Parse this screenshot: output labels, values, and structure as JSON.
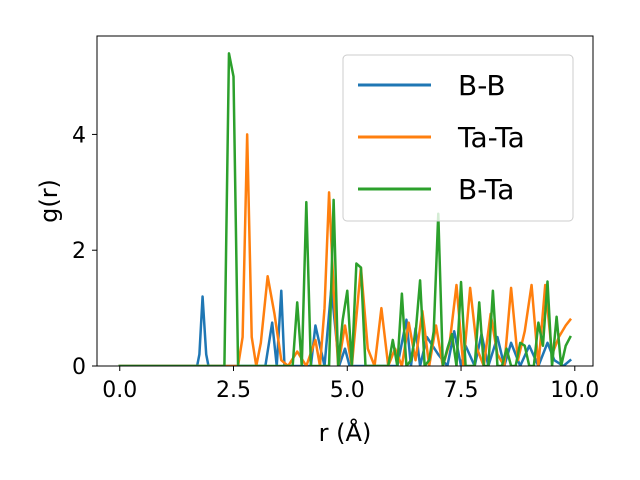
{
  "chart_data": {
    "type": "line",
    "title": "",
    "xlabel": "r (Å)",
    "ylabel": "g(r)",
    "xlim": [
      -0.5,
      10.4
    ],
    "ylim": [
      0,
      5.7
    ],
    "xticks": [
      0.0,
      2.5,
      5.0,
      7.5,
      10.0
    ],
    "xtick_labels": [
      "0.0",
      "2.5",
      "5.0",
      "7.5",
      "10.0"
    ],
    "yticks": [
      0,
      2,
      4
    ],
    "ytick_labels": [
      "0",
      "2",
      "4"
    ],
    "grid": false,
    "legend_position": "top-right",
    "series": [
      {
        "name": "B-B",
        "color": "#1f77b4",
        "x": [
          0.0,
          1.7,
          1.75,
          1.82,
          1.9,
          1.95,
          3.2,
          3.35,
          3.45,
          3.55,
          3.62,
          3.7,
          4.2,
          4.3,
          4.5,
          4.65,
          4.82,
          4.95,
          5.05,
          5.15,
          6.1,
          6.3,
          6.4,
          6.5,
          6.6,
          6.75,
          7.0,
          7.2,
          7.35,
          7.5,
          7.6,
          7.8,
          7.95,
          8.1,
          8.3,
          8.45,
          8.6,
          8.8,
          9.0,
          9.2,
          9.4,
          9.55,
          9.75,
          9.9
        ],
        "y": [
          0.0,
          0.0,
          0.2,
          1.2,
          0.2,
          0.0,
          0.0,
          0.75,
          0.0,
          1.3,
          0.0,
          0.0,
          0.0,
          0.7,
          0.0,
          1.35,
          0.0,
          0.3,
          0.0,
          0.0,
          0.0,
          0.8,
          0.0,
          0.65,
          0.0,
          0.5,
          0.2,
          0.0,
          0.6,
          0.0,
          0.35,
          0.0,
          0.55,
          0.0,
          0.5,
          0.0,
          0.4,
          0.0,
          0.35,
          0.0,
          0.4,
          0.1,
          0.0,
          0.1
        ]
      },
      {
        "name": "Ta-Ta",
        "color": "#ff7f0e",
        "x": [
          0.0,
          2.6,
          2.7,
          2.8,
          2.9,
          3.0,
          3.1,
          3.25,
          3.4,
          3.55,
          3.7,
          3.9,
          4.1,
          4.3,
          4.4,
          4.5,
          4.6,
          4.7,
          4.8,
          4.95,
          5.1,
          5.3,
          5.45,
          5.6,
          5.75,
          5.9,
          6.05,
          6.2,
          6.35,
          6.5,
          6.65,
          6.8,
          6.95,
          7.1,
          7.25,
          7.4,
          7.55,
          7.7,
          7.85,
          8.0,
          8.15,
          8.3,
          8.45,
          8.6,
          8.75,
          8.9,
          9.05,
          9.2,
          9.35,
          9.5,
          9.65,
          9.8,
          9.9
        ],
        "y": [
          0.0,
          0.0,
          0.5,
          4.0,
          0.5,
          0.0,
          0.4,
          1.55,
          0.9,
          0.1,
          0.0,
          0.25,
          0.0,
          0.45,
          0.0,
          1.0,
          3.0,
          1.3,
          0.0,
          0.7,
          0.0,
          1.7,
          0.3,
          0.0,
          1.0,
          0.0,
          0.3,
          0.0,
          0.75,
          0.1,
          0.95,
          0.0,
          0.7,
          0.0,
          0.4,
          1.4,
          0.0,
          1.35,
          0.3,
          0.0,
          0.9,
          0.2,
          0.0,
          1.35,
          0.1,
          0.6,
          1.4,
          0.0,
          1.4,
          0.2,
          0.5,
          0.7,
          0.8
        ]
      },
      {
        "name": "B-Ta",
        "color": "#2ca02c",
        "x": [
          0.0,
          2.2,
          2.3,
          2.4,
          2.5,
          2.6,
          2.7,
          3.6,
          3.7,
          3.8,
          3.9,
          4.0,
          4.1,
          4.2,
          4.3,
          4.4,
          4.5,
          4.6,
          4.7,
          4.8,
          4.9,
          5.0,
          5.1,
          5.2,
          5.3,
          5.4,
          5.5,
          5.6,
          5.7,
          5.8,
          5.9,
          6.0,
          6.1,
          6.2,
          6.3,
          6.4,
          6.5,
          6.6,
          6.7,
          6.8,
          6.9,
          7.0,
          7.1,
          7.2,
          7.3,
          7.4,
          7.5,
          7.6,
          7.7,
          7.8,
          7.9,
          8.0,
          8.1,
          8.2,
          8.3,
          8.4,
          8.5,
          8.6,
          8.7,
          8.8,
          8.9,
          9.0,
          9.1,
          9.2,
          9.3,
          9.4,
          9.5,
          9.6,
          9.7,
          9.8,
          9.9
        ],
        "y": [
          0.0,
          0.0,
          0.0,
          5.4,
          5.0,
          0.0,
          0.0,
          0.0,
          0.0,
          0.0,
          1.1,
          0.0,
          2.83,
          0.0,
          0.0,
          0.0,
          0.0,
          0.0,
          2.87,
          0.0,
          0.8,
          1.3,
          0.0,
          1.77,
          1.7,
          0.0,
          0.0,
          0.0,
          0.0,
          0.0,
          0.0,
          0.45,
          0.0,
          1.25,
          0.0,
          0.1,
          0.55,
          1.48,
          0.0,
          0.1,
          0.6,
          2.63,
          0.0,
          0.3,
          0.55,
          0.0,
          1.45,
          0.0,
          0.0,
          0.0,
          1.1,
          0.0,
          0.0,
          1.3,
          0.0,
          0.0,
          0.3,
          0.0,
          0.0,
          0.4,
          0.35,
          0.0,
          0.0,
          0.75,
          0.35,
          1.46,
          0.0,
          0.85,
          0.0,
          0.35,
          0.5
        ]
      }
    ]
  }
}
